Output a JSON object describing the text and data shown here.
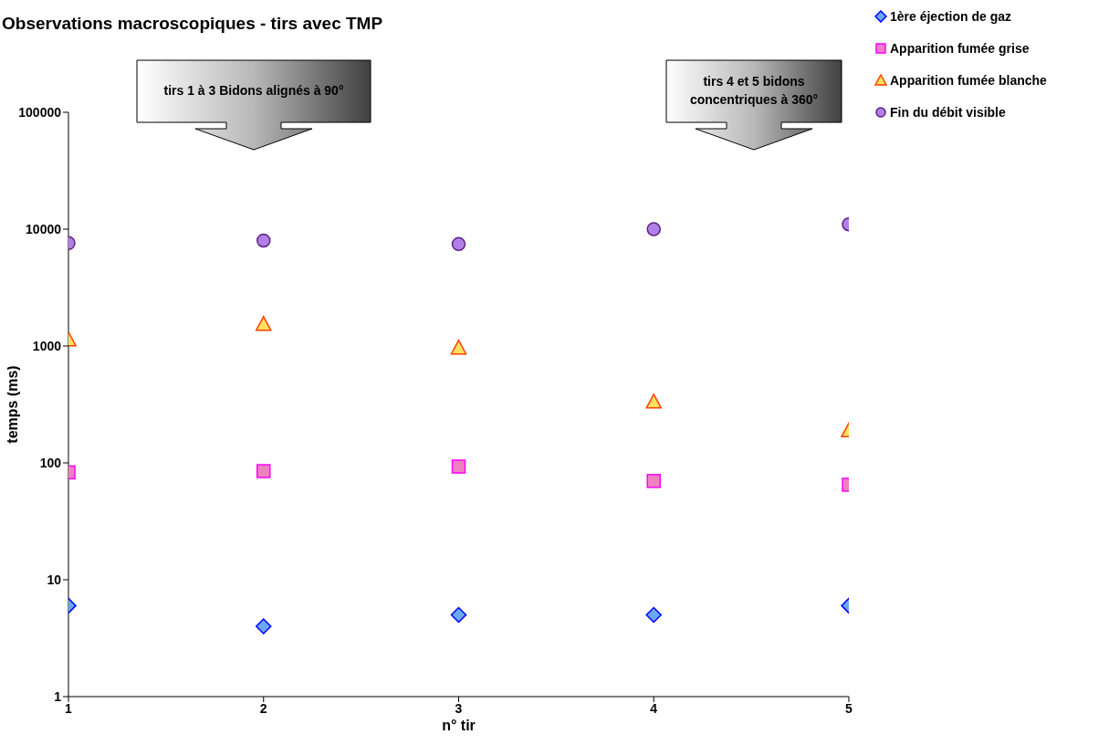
{
  "chart_data": {
    "type": "scatter",
    "title": "Observations macroscopiques - tirs avec TMP",
    "xlabel": "n° tir",
    "ylabel": "temps (ms)",
    "x": [
      1,
      2,
      3,
      4,
      5
    ],
    "xlim": [
      1,
      5
    ],
    "xticks": [
      1,
      2,
      3,
      4,
      5
    ],
    "ylim": [
      1,
      100000
    ],
    "yticks": [
      1,
      10,
      100,
      1000,
      10000,
      100000
    ],
    "log": "y",
    "legend": "top right",
    "annotations": [
      "tirs 1 à 3 Bidons alignés à 90°",
      "tirs 4 et 5 bidons concentriques à 360°"
    ],
    "series": [
      {
        "name": "1ère éjection de gaz",
        "color": "#6aa8f0",
        "marker": "diamond",
        "values": [
          6,
          4,
          5,
          5,
          6
        ]
      },
      {
        "name": "Apparition fumée grise",
        "color": "#f080c0",
        "marker": "square",
        "values": [
          83,
          85,
          93,
          70,
          65
        ]
      },
      {
        "name": "Apparition fumée blanche",
        "color": "#ffe060",
        "marker": "triangle",
        "values": [
          1140,
          1550,
          970,
          335,
          190
        ]
      },
      {
        "name": "Fin du débit visible",
        "color": "#b080e8",
        "marker": "circle",
        "values": [
          7600,
          8000,
          7450,
          10000,
          11000
        ]
      }
    ]
  }
}
